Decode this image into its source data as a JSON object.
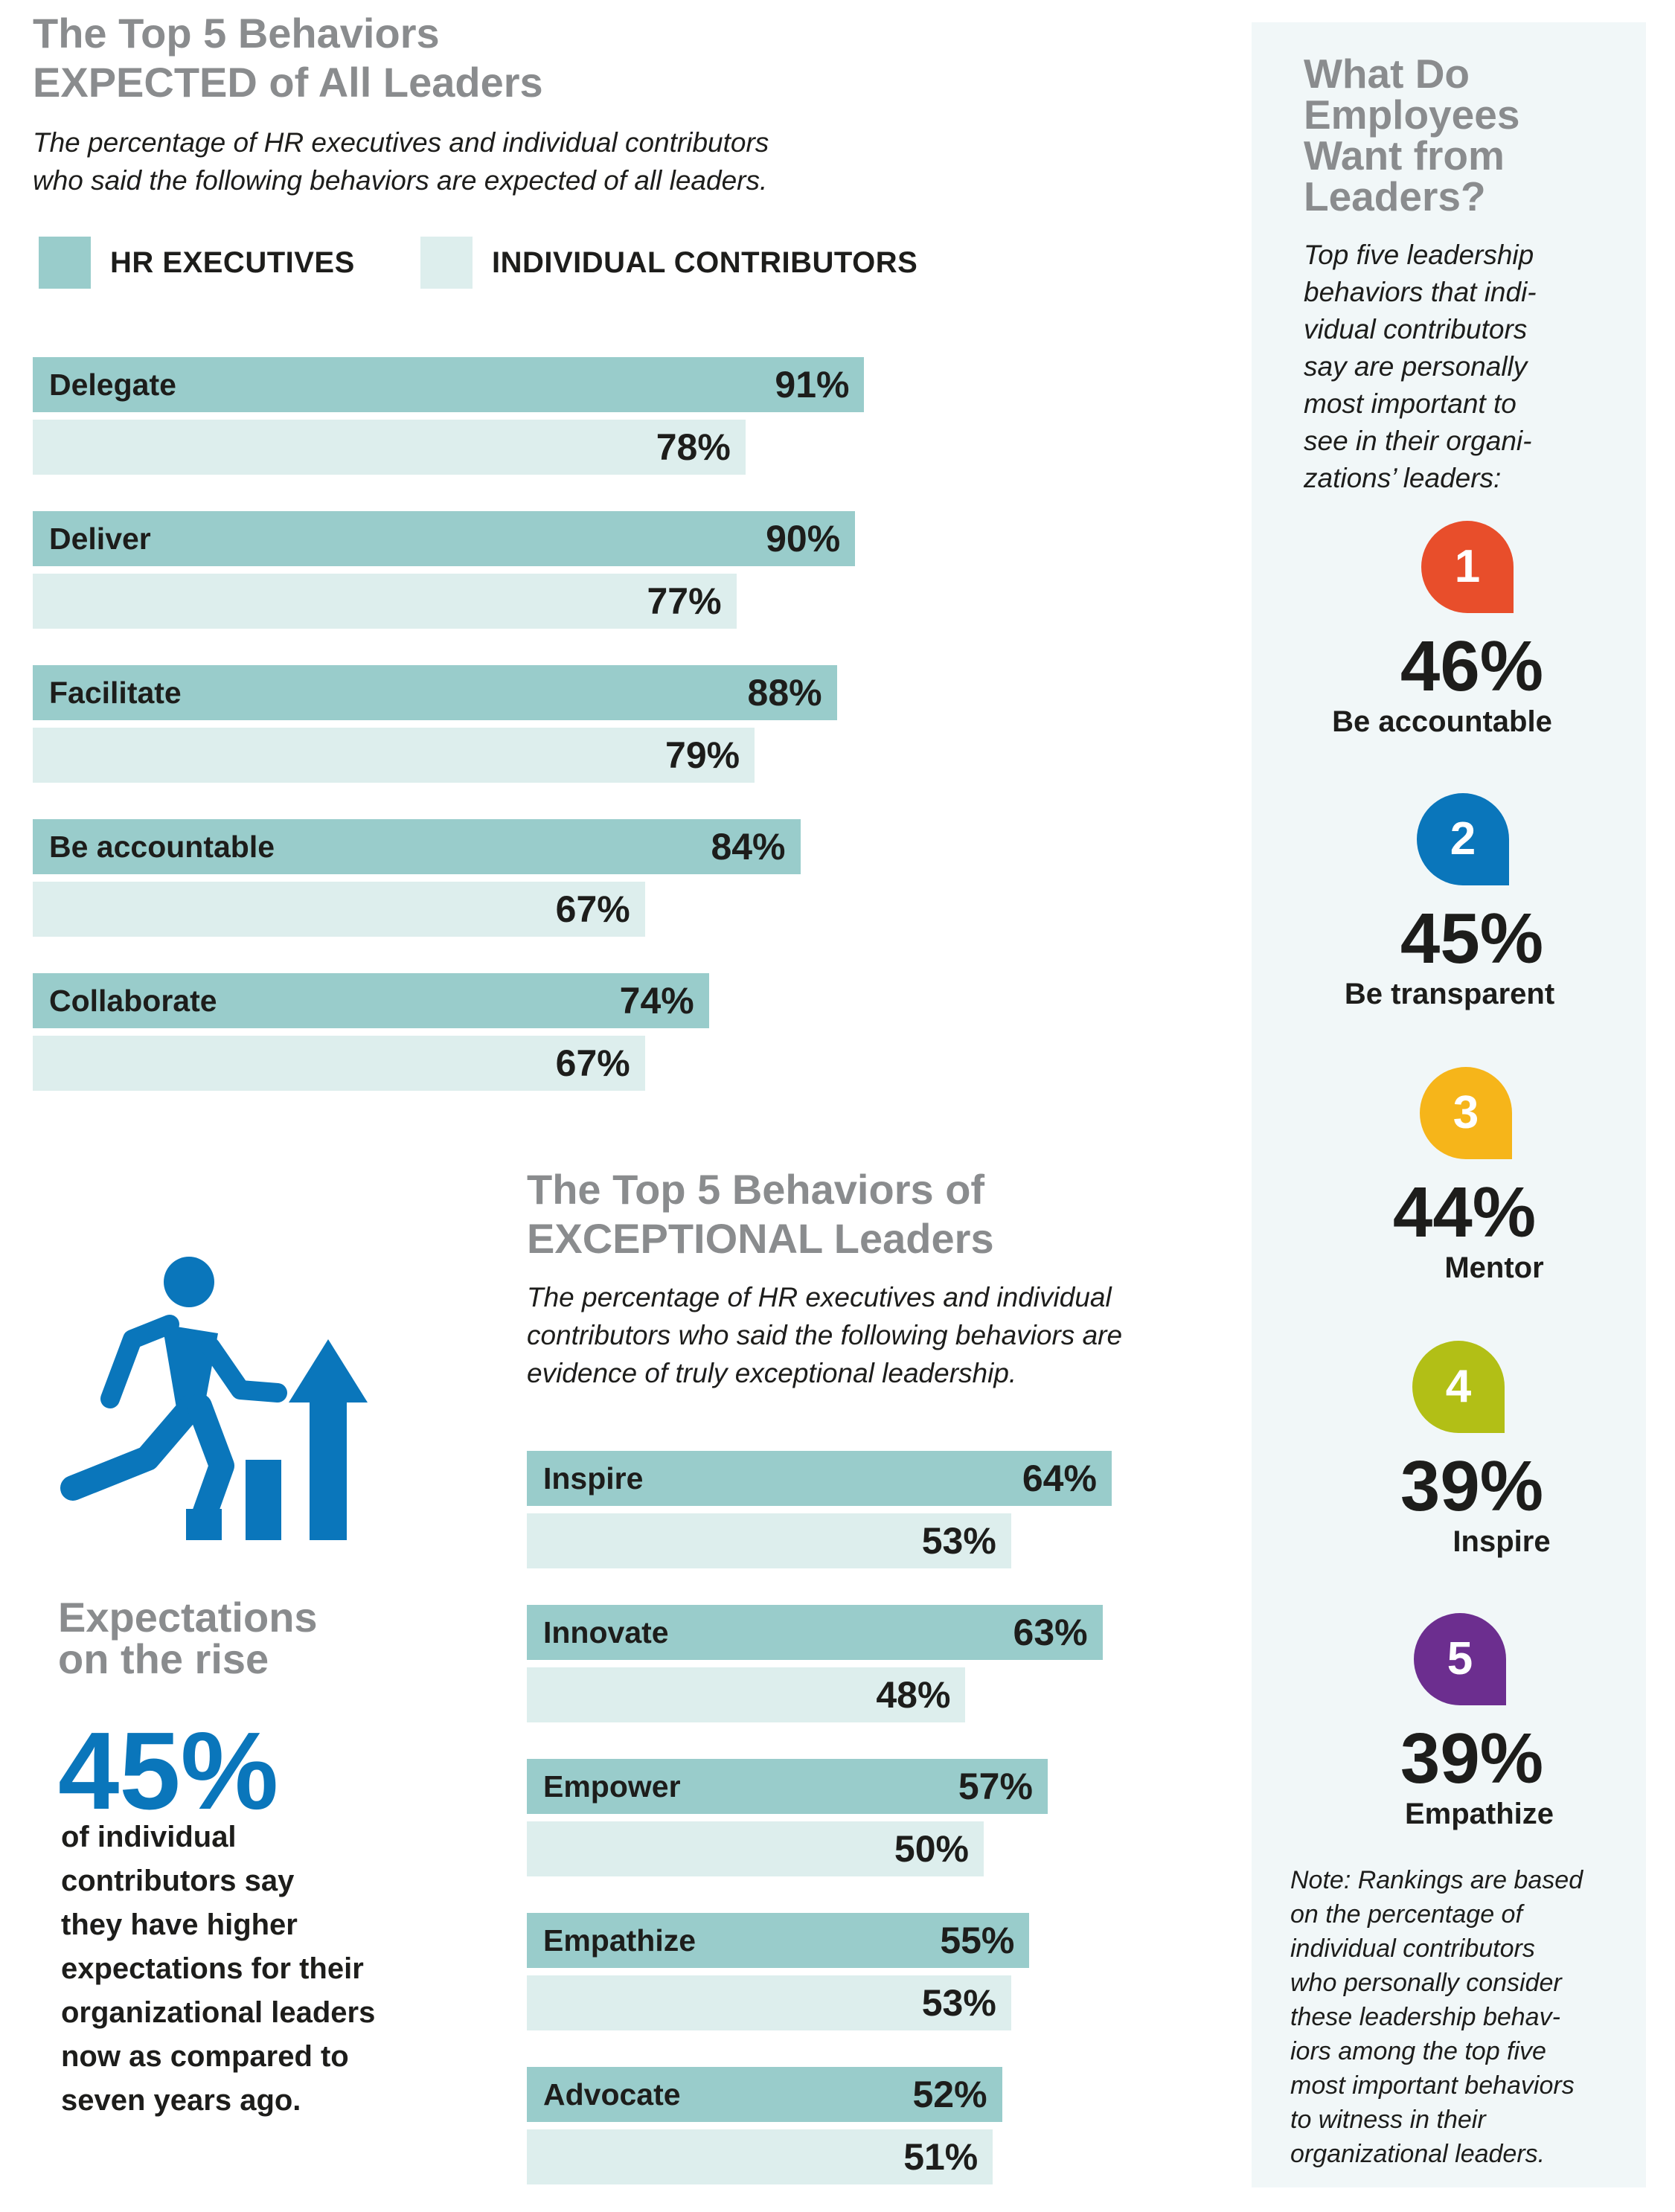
{
  "section1": {
    "title_line1": "The Top 5 Behaviors",
    "title_line2": "EXPECTED of All Leaders",
    "subtitle_line1": "The percentage of HR executives and individual contributors",
    "subtitle_line2": "who said the following behaviors are expected of all leaders."
  },
  "legend": {
    "hr_label": "HR EXECUTIVES",
    "ic_label": "INDIVIDUAL CONTRIBUTORS"
  },
  "colors": {
    "hr": "#99cccb",
    "ic": "#ddeeed",
    "accent_blue": "#0a76bb",
    "title_gray": "#8a8c8e",
    "rank1": "#e84e2b",
    "rank2": "#0a76bb",
    "rank3": "#f6b51a",
    "rank4": "#b2bf16",
    "rank5": "#6c2e8f"
  },
  "chart_data": [
    {
      "type": "bar",
      "orientation": "horizontal",
      "categories": [
        "Delegate",
        "Deliver",
        "Facilitate",
        "Be accountable",
        "Collaborate"
      ],
      "series": [
        {
          "name": "HR EXECUTIVES",
          "values": [
            91,
            90,
            88,
            84,
            74
          ]
        },
        {
          "name": "INDIVIDUAL CONTRIBUTORS",
          "values": [
            78,
            77,
            79,
            67,
            67
          ]
        }
      ],
      "value_suffix": "%",
      "xlim": [
        0,
        100
      ]
    },
    {
      "type": "bar",
      "orientation": "horizontal",
      "categories": [
        "Inspire",
        "Innovate",
        "Empower",
        "Empathize",
        "Advocate"
      ],
      "series": [
        {
          "name": "HR EXECUTIVES",
          "values": [
            64,
            63,
            57,
            55,
            52
          ]
        },
        {
          "name": "INDIVIDUAL CONTRIBUTORS",
          "values": [
            53,
            48,
            50,
            53,
            51
          ]
        }
      ],
      "value_suffix": "%",
      "xlim": [
        0,
        100
      ]
    }
  ],
  "section2": {
    "title_line1": "The Top 5 Behaviors of",
    "title_line2": "EXCEPTIONAL Leaders",
    "subtitle_line1": "The percentage of HR executives and individual",
    "subtitle_line2": "contributors who said the following behaviors are",
    "subtitle_line3": "evidence of truly exceptional leadership."
  },
  "rise": {
    "icon": "climbing-person-icon",
    "title_line1": "Expectations",
    "title_line2": "on the rise",
    "pct": "45%",
    "text_lines": [
      "of individual",
      "contributors say",
      "they have higher",
      "expectations for their",
      "organizational leaders",
      "now as compared to",
      "seven years ago."
    ]
  },
  "sidebar": {
    "title_lines": [
      "What Do",
      "Employees",
      "Want from",
      "Leaders?"
    ],
    "intro_lines": [
      "Top five leadership",
      "behaviors that indi-",
      "vidual contributors",
      "say are personally",
      "most important to",
      "see in their organi-",
      "zations’ leaders:"
    ],
    "ranks": [
      {
        "rank": "1",
        "pct": "46%",
        "label": "Be accountable"
      },
      {
        "rank": "2",
        "pct": "45%",
        "label": "Be transparent"
      },
      {
        "rank": "3",
        "pct": "44%",
        "label": "Mentor"
      },
      {
        "rank": "4",
        "pct": "39%",
        "label": "Inspire"
      },
      {
        "rank": "5",
        "pct": "39%",
        "label": "Empathize"
      }
    ],
    "note_lines": [
      "Note: Rankings are based",
      "on the percentage of",
      "individual contributors",
      "who personally consider",
      "these leadership behav-",
      "iors among the top five",
      "most important behaviors",
      "to witness in their",
      "organizational leaders."
    ]
  }
}
